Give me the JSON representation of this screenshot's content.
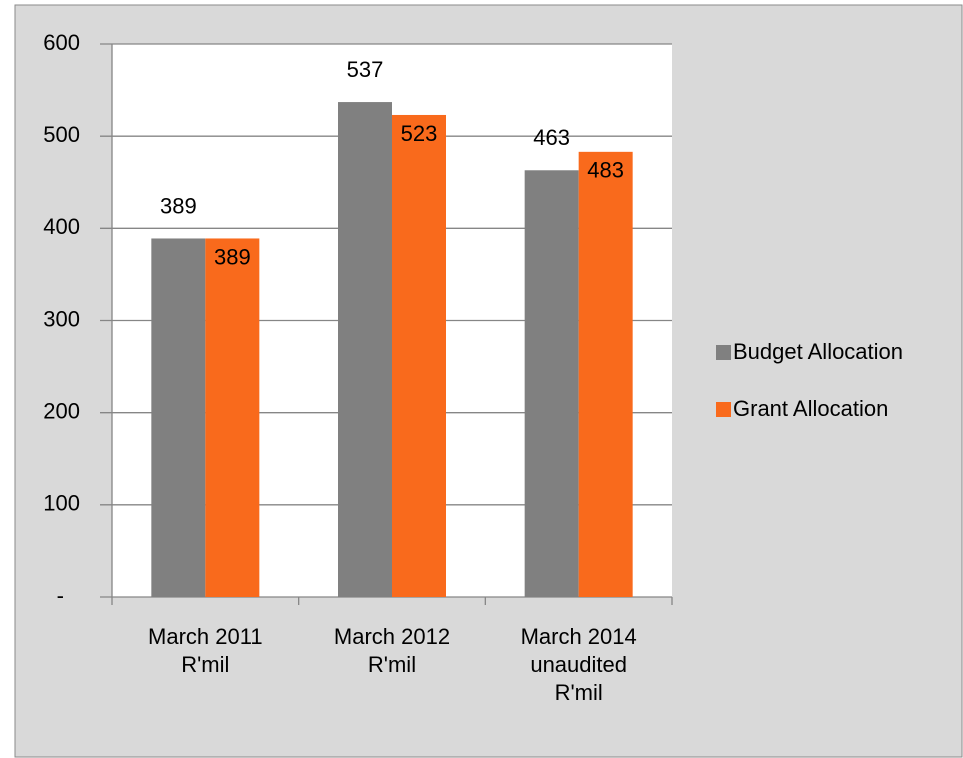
{
  "chart_data": {
    "type": "bar",
    "categories": [
      [
        "March 2011",
        "R'mil"
      ],
      [
        "March 2012",
        "R'mil"
      ],
      [
        "March 2014",
        "unaudited",
        "R'mil"
      ]
    ],
    "series": [
      {
        "name": "Budget Allocation",
        "color": "#808080",
        "values": [
          389,
          537,
          463
        ]
      },
      {
        "name": "Grant Allocation",
        "color": "#f96a1c",
        "values": [
          389,
          523,
          483
        ]
      }
    ],
    "ylim": [
      0,
      600
    ],
    "yticks": [
      {
        "value": 0,
        "label": "-"
      },
      100,
      200,
      300,
      400,
      500,
      600
    ],
    "grid": true,
    "legend": "right"
  }
}
